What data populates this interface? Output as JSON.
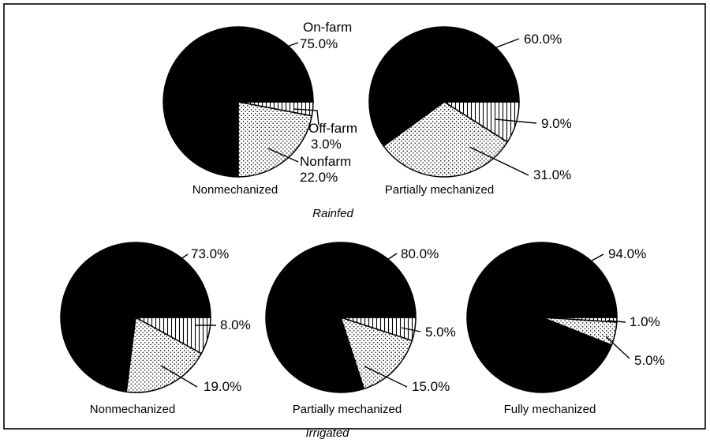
{
  "colors": {
    "on_farm": "#000000",
    "nonfarm": "dotted-stipple",
    "off_farm": "vertical-hatch"
  },
  "chart_data": [
    {
      "type": "pie",
      "group": "Rainfed",
      "caption": "Nonmechanized",
      "slices": [
        {
          "key": "on",
          "label": "On-farm",
          "value": 75.0,
          "text": "75.0%"
        },
        {
          "key": "off",
          "label": "Off-farm",
          "value": 3.0,
          "text": "3.0%"
        },
        {
          "key": "non",
          "label": "Nonfarm",
          "value": 22.0,
          "text": "22.0%"
        }
      ]
    },
    {
      "type": "pie",
      "group": "Rainfed",
      "caption": "Partially mechanized",
      "slices": [
        {
          "key": "on",
          "value": 60.0,
          "text": "60.0%"
        },
        {
          "key": "off",
          "value": 9.0,
          "text": "9.0%"
        },
        {
          "key": "non",
          "value": 31.0,
          "text": "31.0%"
        }
      ]
    },
    {
      "type": "pie",
      "group": "Irrigated",
      "caption": "Nonmechanized",
      "slices": [
        {
          "key": "on",
          "value": 73.0,
          "text": "73.0%"
        },
        {
          "key": "off",
          "value": 8.0,
          "text": "8.0%"
        },
        {
          "key": "non",
          "value": 19.0,
          "text": "19.0%"
        }
      ]
    },
    {
      "type": "pie",
      "group": "Irrigated",
      "caption": "Partially mechanized",
      "slices": [
        {
          "key": "on",
          "value": 80.0,
          "text": "80.0%"
        },
        {
          "key": "off",
          "value": 5.0,
          "text": "5.0%"
        },
        {
          "key": "non",
          "value": 15.0,
          "text": "15.0%"
        }
      ]
    },
    {
      "type": "pie",
      "group": "Irrigated",
      "caption": "Fully mechanized",
      "slices": [
        {
          "key": "on",
          "value": 94.0,
          "text": "94.0%"
        },
        {
          "key": "off",
          "value": 1.0,
          "text": "1.0%"
        },
        {
          "key": "non",
          "value": 5.0,
          "text": "5.0%"
        }
      ]
    }
  ],
  "group_labels": {
    "rainfed": "Rainfed",
    "irrigated": "Irrigated"
  }
}
